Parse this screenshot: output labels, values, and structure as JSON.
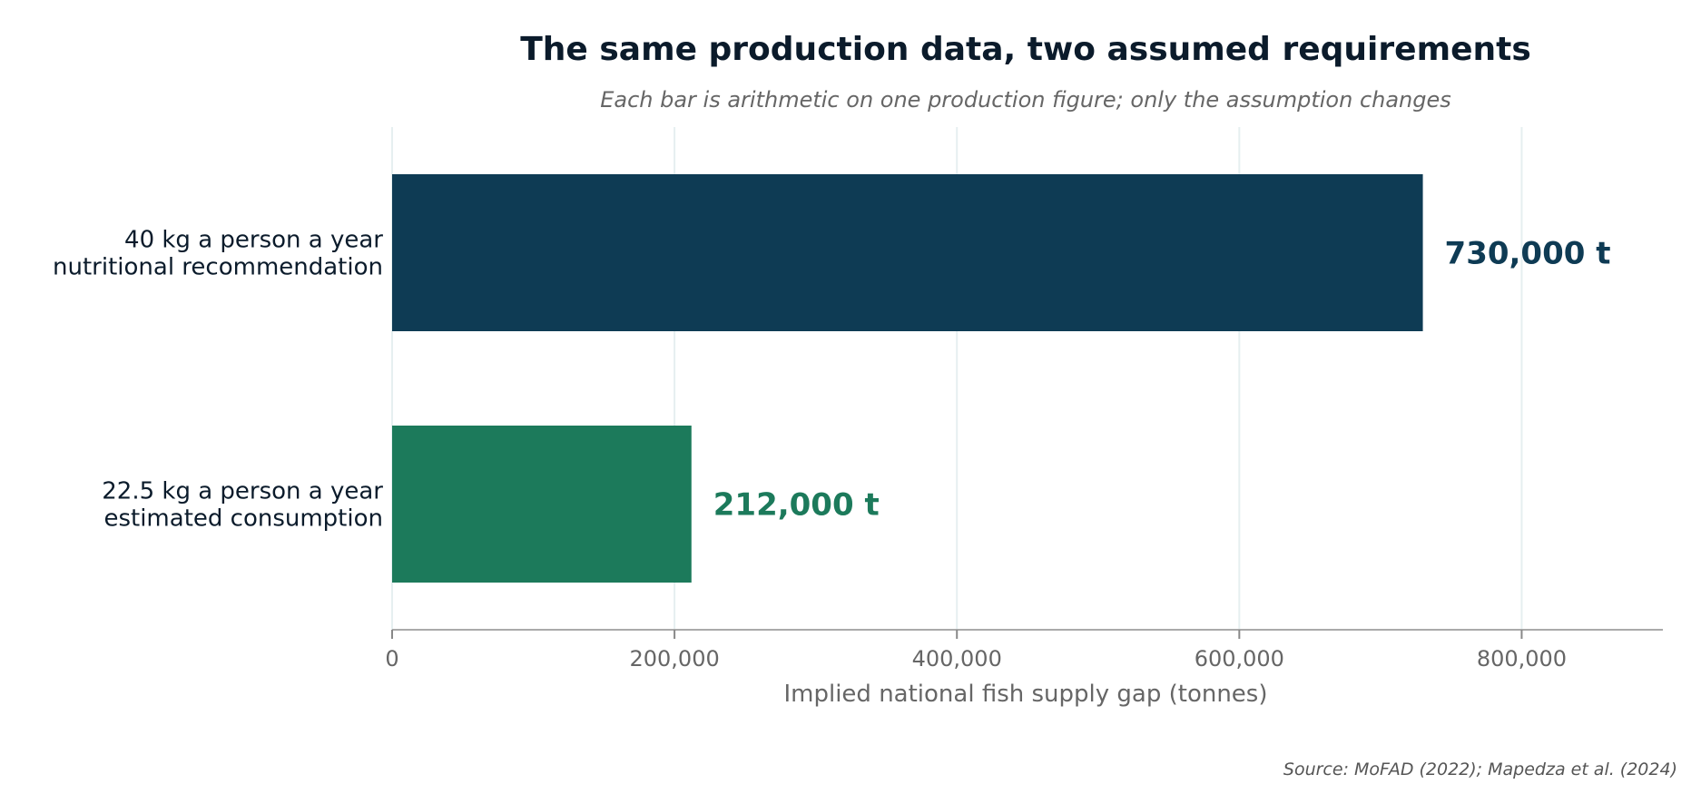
{
  "chart_data": {
    "type": "bar",
    "orientation": "horizontal",
    "title": "The same production data, two assumed requirements",
    "subtitle": "Each bar is arithmetic on one production figure; only the assumption changes",
    "xlabel": "Implied national fish supply gap (tonnes)",
    "ylabel": "",
    "xlim": [
      0,
      900000
    ],
    "xticks": [
      0,
      200000,
      400000,
      600000,
      800000
    ],
    "xtick_labels": [
      "0",
      "200,000",
      "400,000",
      "600,000",
      "800,000"
    ],
    "grid": "vertical",
    "categories": [
      [
        "40 kg a person a year",
        "nutritional recommendation"
      ],
      [
        "22.5 kg a person a year",
        "estimated consumption"
      ]
    ],
    "values": [
      730000,
      212000
    ],
    "value_labels": [
      "730,000 t",
      "212,000 t"
    ],
    "colors": [
      "#0e3b54",
      "#1c7a5b"
    ],
    "source": "Source: MoFAD (2022); Mapedza et al. (2024)"
  }
}
